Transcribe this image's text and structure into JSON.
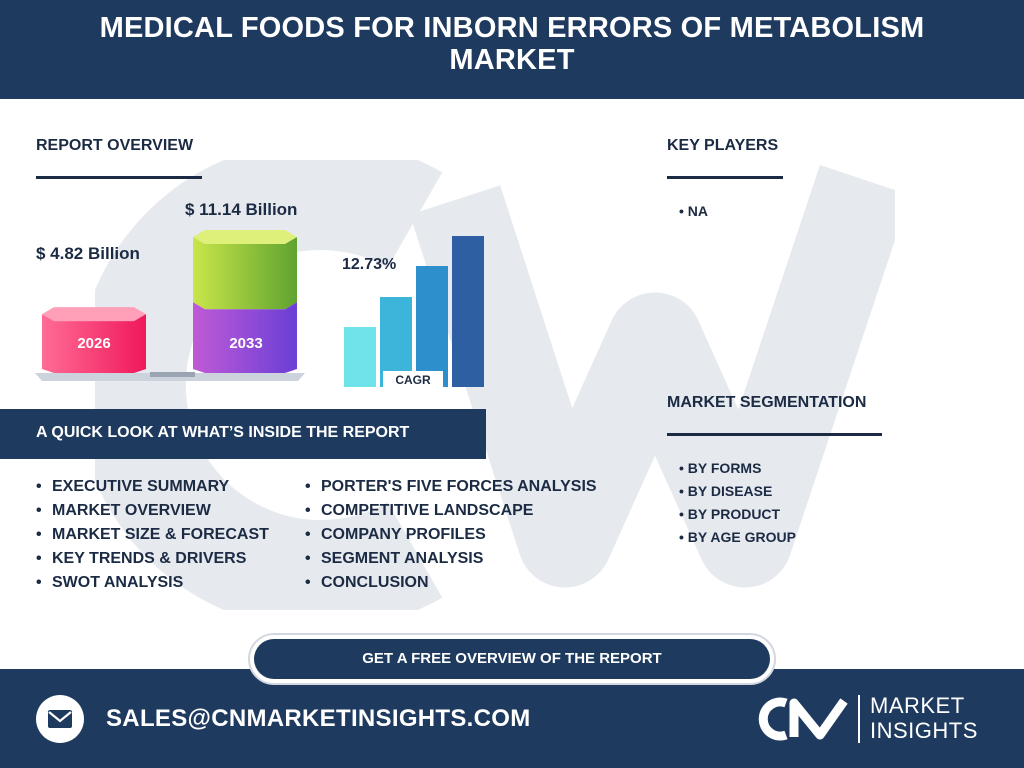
{
  "header": {
    "title": "MEDICAL FOODS FOR INBORN ERRORS OF METABOLISM MARKET"
  },
  "report_overview": {
    "heading": "REPORT OVERVIEW",
    "value_2026": "$ 4.82 Billion",
    "year_2026": "2026",
    "value_2033": "$ 11.14 Billion",
    "year_2033": "2033",
    "cagr_value": "12.73%",
    "cagr_label": "CAGR"
  },
  "chart_data": {
    "type": "bar",
    "categories": [
      "2026",
      "2033"
    ],
    "values": [
      4.82,
      11.14
    ],
    "title": "",
    "xlabel": "",
    "ylabel": "",
    "cagr": "12.73%"
  },
  "key_players": {
    "heading": "KEY PLAYERS",
    "items": [
      "• NA"
    ]
  },
  "segmentation": {
    "heading": "MARKET SEGMENTATION",
    "items": [
      "• BY FORMS",
      "• BY DISEASE",
      "• BY PRODUCT",
      "• BY AGE GROUP"
    ]
  },
  "quick_look": {
    "title": "A QUICK LOOK AT WHAT’S INSIDE THE REPORT",
    "col1": [
      "EXECUTIVE SUMMARY",
      "MARKET OVERVIEW",
      "MARKET SIZE & FORECAST",
      "KEY TRENDS & DRIVERS",
      "SWOT ANALYSIS"
    ],
    "col2": [
      "PORTER'S FIVE FORCES ANALYSIS",
      "COMPETITIVE LANDSCAPE",
      "COMPANY PROFILES",
      "SEGMENT ANALYSIS",
      "CONCLUSION"
    ]
  },
  "cta": {
    "label": "GET A FREE OVERVIEW OF THE REPORT"
  },
  "footer": {
    "email": "SALES@CNMARKETINSIGHTS.COM",
    "logo_letters": "CN",
    "logo_line1": "MARKET",
    "logo_line2": "INSIGHTS"
  },
  "colors": {
    "navy": "#1e3a5f",
    "watermark": "#e6e9ee",
    "bar_2026": "#ff2d6f",
    "bar_2033_top": "#a4d63a",
    "bar_2033_bottom": "#7c44d6",
    "cagr_bars": [
      "#6fe3ea",
      "#3db4da",
      "#2d8fcc",
      "#2f5fa3"
    ]
  },
  "icons": {
    "mail": "envelope-icon",
    "logo": "cn-logo-icon"
  }
}
